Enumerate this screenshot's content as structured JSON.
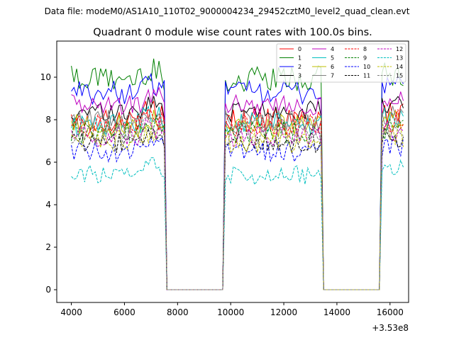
{
  "suptitle": "Data file: modeM0/AS1A10_110T02_9000004234_29452cztM0_level2_quad_clean.evt",
  "chart_data": {
    "type": "line",
    "title": "Quadrant 0 module wise count rates with 100.0s bins.",
    "xlabel": "",
    "ylabel": "",
    "x_offset_label": "+3.53e8",
    "xlim": [
      3450,
      16700
    ],
    "ylim": [
      -0.6,
      11.7
    ],
    "xticks": [
      4000,
      6000,
      8000,
      10000,
      12000,
      14000,
      16000
    ],
    "yticks": [
      0,
      2,
      4,
      6,
      8,
      10
    ],
    "legend_position": "top-right",
    "segments": [
      {
        "x_start": 4000,
        "x_end": 7500,
        "step": 100,
        "seed": 0
      },
      {
        "x_start": 9800,
        "x_end": 13400,
        "step": 100,
        "seed": 1
      },
      {
        "x_start": 15700,
        "x_end": 16500,
        "step": 100,
        "seed": 2
      }
    ],
    "gap_value": 0,
    "series": [
      {
        "name": "0",
        "color": "#ff0000",
        "dash": "solid",
        "level": 8.0,
        "amp": 0.35
      },
      {
        "name": "1",
        "color": "#008000",
        "dash": "solid",
        "level": 9.9,
        "amp": 0.4
      },
      {
        "name": "2",
        "color": "#0000ff",
        "dash": "solid",
        "level": 9.3,
        "amp": 0.35
      },
      {
        "name": "3",
        "color": "#000000",
        "dash": "solid",
        "level": 8.4,
        "amp": 0.3
      },
      {
        "name": "4",
        "color": "#bf00bf",
        "dash": "solid",
        "level": 8.7,
        "amp": 0.3
      },
      {
        "name": "5",
        "color": "#00bfbf",
        "dash": "solid",
        "level": 7.8,
        "amp": 0.35
      },
      {
        "name": "6",
        "color": "#bfbf00",
        "dash": "solid",
        "level": 7.7,
        "amp": 0.35
      },
      {
        "name": "7",
        "color": "#808080",
        "dash": "solid",
        "level": 7.9,
        "amp": 0.35
      },
      {
        "name": "8",
        "color": "#ff0000",
        "dash": "dashed",
        "level": 7.7,
        "amp": 0.35
      },
      {
        "name": "9",
        "color": "#008000",
        "dash": "dashed",
        "level": 7.4,
        "amp": 0.35
      },
      {
        "name": "10",
        "color": "#0000ff",
        "dash": "dashed",
        "level": 6.5,
        "amp": 0.3
      },
      {
        "name": "11",
        "color": "#000000",
        "dash": "dashed",
        "level": 6.9,
        "amp": 0.3
      },
      {
        "name": "12",
        "color": "#bf00bf",
        "dash": "dashed",
        "level": 7.2,
        "amp": 0.3
      },
      {
        "name": "13",
        "color": "#00bfbf",
        "dash": "dashed",
        "level": 5.4,
        "amp": 0.3
      },
      {
        "name": "14",
        "color": "#bfbf00",
        "dash": "dashed",
        "level": 7.0,
        "amp": 0.35
      },
      {
        "name": "15",
        "color": "#808080",
        "dash": "dashed",
        "level": 7.3,
        "amp": 0.3
      }
    ]
  }
}
